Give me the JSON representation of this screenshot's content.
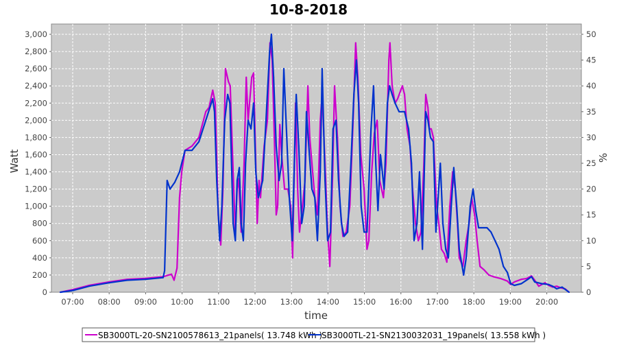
{
  "chart_data": {
    "type": "line",
    "title": "10-8-2018",
    "xlabel": "time",
    "ylabel": "Watt",
    "ylabel_right": "%",
    "ylim": [
      0,
      3000
    ],
    "ylim_right": [
      0,
      50
    ],
    "xlim_hours": [
      6.4,
      21.0
    ],
    "grid": true,
    "legend_position": "bottom",
    "x_ticks": [
      "07:00",
      "08:00",
      "09:00",
      "10:00",
      "11:00",
      "12:00",
      "13:00",
      "14:00",
      "15:00",
      "16:00",
      "17:00",
      "18:00",
      "19:00",
      "20:00"
    ],
    "y_ticks": [
      "0",
      "200",
      "400",
      "600",
      "800",
      "1,000",
      "1,200",
      "1,400",
      "1,600",
      "1,800",
      "2,000",
      "2,200",
      "2,400",
      "2,600",
      "2,800",
      "3,000"
    ],
    "y_ticks_right": [
      "0",
      "5",
      "10",
      "15",
      "20",
      "25",
      "30",
      "35",
      "40",
      "45",
      "50"
    ],
    "series": [
      {
        "name": "SB3000TL-20-SN2100578613_21panels( 13.748 kWh )",
        "color": "#cc00cc",
        "points": [
          [
            6.66,
            0
          ],
          [
            7.0,
            30
          ],
          [
            7.45,
            80
          ],
          [
            8.0,
            120
          ],
          [
            8.49,
            150
          ],
          [
            8.99,
            160
          ],
          [
            9.48,
            180
          ],
          [
            9.63,
            200
          ],
          [
            9.71,
            210
          ],
          [
            9.78,
            140
          ],
          [
            9.86,
            280
          ],
          [
            9.93,
            1100
          ],
          [
            9.99,
            1400
          ],
          [
            10.08,
            1650
          ],
          [
            10.27,
            1700
          ],
          [
            10.46,
            1800
          ],
          [
            10.65,
            2100
          ],
          [
            10.74,
            2150
          ],
          [
            10.84,
            2350
          ],
          [
            10.91,
            2200
          ],
          [
            10.99,
            900
          ],
          [
            11.06,
            550
          ],
          [
            11.12,
            1200
          ],
          [
            11.19,
            2600
          ],
          [
            11.27,
            2450
          ],
          [
            11.32,
            2400
          ],
          [
            11.4,
            1400
          ],
          [
            11.46,
            700
          ],
          [
            11.51,
            1200
          ],
          [
            11.55,
            1320
          ],
          [
            11.62,
            700
          ],
          [
            11.7,
            1500
          ],
          [
            11.76,
            2500
          ],
          [
            11.81,
            2000
          ],
          [
            11.91,
            2500
          ],
          [
            11.96,
            2550
          ],
          [
            12.02,
            1500
          ],
          [
            12.06,
            800
          ],
          [
            12.11,
            1300
          ],
          [
            12.15,
            1100
          ],
          [
            12.25,
            1700
          ],
          [
            12.34,
            2000
          ],
          [
            12.41,
            2900
          ],
          [
            12.47,
            2700
          ],
          [
            12.53,
            1800
          ],
          [
            12.58,
            900
          ],
          [
            12.62,
            1000
          ],
          [
            12.68,
            1950
          ],
          [
            12.73,
            1600
          ],
          [
            12.81,
            1200
          ],
          [
            12.9,
            1200
          ],
          [
            12.98,
            1000
          ],
          [
            13.03,
            400
          ],
          [
            13.11,
            2200
          ],
          [
            13.17,
            1200
          ],
          [
            13.22,
            700
          ],
          [
            13.3,
            1000
          ],
          [
            13.37,
            1300
          ],
          [
            13.45,
            2400
          ],
          [
            13.5,
            1800
          ],
          [
            13.56,
            1500
          ],
          [
            13.64,
            1100
          ],
          [
            13.71,
            900
          ],
          [
            13.79,
            2000
          ],
          [
            13.84,
            2300
          ],
          [
            13.92,
            1500
          ],
          [
            13.99,
            700
          ],
          [
            14.05,
            300
          ],
          [
            14.13,
            1400
          ],
          [
            14.18,
            2400
          ],
          [
            14.26,
            1800
          ],
          [
            14.33,
            1000
          ],
          [
            14.41,
            650
          ],
          [
            14.5,
            700
          ],
          [
            14.6,
            1000
          ],
          [
            14.69,
            2000
          ],
          [
            14.76,
            2900
          ],
          [
            14.82,
            2500
          ],
          [
            14.9,
            1600
          ],
          [
            14.99,
            1200
          ],
          [
            15.07,
            500
          ],
          [
            15.12,
            600
          ],
          [
            15.2,
            1400
          ],
          [
            15.27,
            1850
          ],
          [
            15.35,
            2000
          ],
          [
            15.42,
            1300
          ],
          [
            15.52,
            1100
          ],
          [
            15.59,
            1500
          ],
          [
            15.67,
            2700
          ],
          [
            15.7,
            2900
          ],
          [
            15.76,
            2400
          ],
          [
            15.84,
            2200
          ],
          [
            15.91,
            2250
          ],
          [
            16.04,
            2400
          ],
          [
            16.1,
            2300
          ],
          [
            16.17,
            1900
          ],
          [
            16.25,
            1700
          ],
          [
            16.32,
            1200
          ],
          [
            16.4,
            800
          ],
          [
            16.48,
            600
          ],
          [
            16.55,
            700
          ],
          [
            16.63,
            1500
          ],
          [
            16.68,
            2300
          ],
          [
            16.74,
            2150
          ],
          [
            16.78,
            1900
          ],
          [
            16.83,
            1900
          ],
          [
            16.89,
            1800
          ],
          [
            16.98,
            1000
          ],
          [
            17.04,
            800
          ],
          [
            17.11,
            500
          ],
          [
            17.19,
            450
          ],
          [
            17.26,
            350
          ],
          [
            17.34,
            1000
          ],
          [
            17.42,
            1400
          ],
          [
            17.49,
            1200
          ],
          [
            17.55,
            800
          ],
          [
            17.6,
            400
          ],
          [
            17.7,
            300
          ],
          [
            17.79,
            600
          ],
          [
            17.87,
            800
          ],
          [
            17.94,
            1100
          ],
          [
            18.02,
            900
          ],
          [
            18.09,
            600
          ],
          [
            18.17,
            300
          ],
          [
            18.28,
            260
          ],
          [
            18.41,
            200
          ],
          [
            18.54,
            180
          ],
          [
            18.73,
            160
          ],
          [
            18.92,
            130
          ],
          [
            19.01,
            90
          ],
          [
            19.11,
            120
          ],
          [
            19.3,
            150
          ],
          [
            19.45,
            160
          ],
          [
            19.58,
            190
          ],
          [
            19.67,
            140
          ],
          [
            19.78,
            70
          ],
          [
            19.95,
            110
          ],
          [
            20.05,
            80
          ],
          [
            20.16,
            60
          ],
          [
            20.27,
            70
          ],
          [
            20.39,
            50
          ],
          [
            20.5,
            40
          ],
          [
            20.61,
            0
          ]
        ]
      },
      {
        "name": "SB3000TL-21-SN2130032031_19panels( 13.558 kWh )",
        "color": "#0033cc",
        "points": [
          [
            6.66,
            0
          ],
          [
            7.0,
            20
          ],
          [
            7.45,
            70
          ],
          [
            8.0,
            110
          ],
          [
            8.49,
            140
          ],
          [
            8.99,
            150
          ],
          [
            9.48,
            170
          ],
          [
            9.52,
            250
          ],
          [
            9.59,
            1300
          ],
          [
            9.67,
            1200
          ],
          [
            9.8,
            1280
          ],
          [
            9.93,
            1400
          ],
          [
            10.08,
            1650
          ],
          [
            10.27,
            1650
          ],
          [
            10.46,
            1750
          ],
          [
            10.65,
            2000
          ],
          [
            10.84,
            2250
          ],
          [
            10.89,
            2100
          ],
          [
            10.95,
            1300
          ],
          [
            11.03,
            600
          ],
          [
            11.09,
            1000
          ],
          [
            11.17,
            2000
          ],
          [
            11.25,
            2300
          ],
          [
            11.31,
            2200
          ],
          [
            11.4,
            800
          ],
          [
            11.46,
            600
          ],
          [
            11.51,
            1300
          ],
          [
            11.57,
            1450
          ],
          [
            11.62,
            800
          ],
          [
            11.68,
            600
          ],
          [
            11.74,
            1500
          ],
          [
            11.81,
            2000
          ],
          [
            11.89,
            1900
          ],
          [
            11.96,
            2200
          ],
          [
            12.02,
            1400
          ],
          [
            12.09,
            1100
          ],
          [
            12.15,
            1200
          ],
          [
            12.21,
            1300
          ],
          [
            12.3,
            2000
          ],
          [
            12.4,
            2800
          ],
          [
            12.45,
            3000
          ],
          [
            12.51,
            2500
          ],
          [
            12.58,
            1700
          ],
          [
            12.66,
            1300
          ],
          [
            12.73,
            1500
          ],
          [
            12.79,
            2600
          ],
          [
            12.87,
            1800
          ],
          [
            12.94,
            1100
          ],
          [
            13.02,
            600
          ],
          [
            13.13,
            2300
          ],
          [
            13.2,
            1700
          ],
          [
            13.28,
            800
          ],
          [
            13.35,
            1000
          ],
          [
            13.41,
            2100
          ],
          [
            13.49,
            1600
          ],
          [
            13.56,
            1200
          ],
          [
            13.64,
            1100
          ],
          [
            13.71,
            600
          ],
          [
            13.79,
            1400
          ],
          [
            13.84,
            2600
          ],
          [
            13.92,
            1300
          ],
          [
            13.99,
            600
          ],
          [
            14.07,
            700
          ],
          [
            14.14,
            1900
          ],
          [
            14.22,
            2000
          ],
          [
            14.29,
            1300
          ],
          [
            14.37,
            800
          ],
          [
            14.44,
            650
          ],
          [
            14.54,
            700
          ],
          [
            14.63,
            1500
          ],
          [
            14.71,
            2300
          ],
          [
            14.78,
            2700
          ],
          [
            14.84,
            2200
          ],
          [
            14.91,
            1000
          ],
          [
            14.99,
            700
          ],
          [
            15.07,
            700
          ],
          [
            15.18,
            1900
          ],
          [
            15.25,
            2400
          ],
          [
            15.31,
            1500
          ],
          [
            15.37,
            950
          ],
          [
            15.44,
            1600
          ],
          [
            15.54,
            1200
          ],
          [
            15.63,
            2200
          ],
          [
            15.69,
            2400
          ],
          [
            15.76,
            2300
          ],
          [
            15.84,
            2200
          ],
          [
            15.95,
            2100
          ],
          [
            16.1,
            2100
          ],
          [
            16.21,
            1900
          ],
          [
            16.29,
            1500
          ],
          [
            16.36,
            600
          ],
          [
            16.44,
            800
          ],
          [
            16.51,
            1400
          ],
          [
            16.59,
            500
          ],
          [
            16.68,
            2100
          ],
          [
            16.74,
            2000
          ],
          [
            16.81,
            1800
          ],
          [
            16.89,
            1750
          ],
          [
            16.96,
            700
          ],
          [
            17.02,
            1100
          ],
          [
            17.08,
            1500
          ],
          [
            17.15,
            800
          ],
          [
            17.23,
            500
          ],
          [
            17.3,
            400
          ],
          [
            17.38,
            1000
          ],
          [
            17.45,
            1450
          ],
          [
            17.53,
            1000
          ],
          [
            17.6,
            500
          ],
          [
            17.72,
            200
          ],
          [
            17.79,
            400
          ],
          [
            17.9,
            1000
          ],
          [
            17.98,
            1200
          ],
          [
            18.05,
            950
          ],
          [
            18.13,
            750
          ],
          [
            18.2,
            750
          ],
          [
            18.36,
            750
          ],
          [
            18.47,
            700
          ],
          [
            18.58,
            600
          ],
          [
            18.69,
            500
          ],
          [
            18.81,
            300
          ],
          [
            18.92,
            230
          ],
          [
            19.01,
            100
          ],
          [
            19.11,
            80
          ],
          [
            19.3,
            100
          ],
          [
            19.48,
            150
          ],
          [
            19.58,
            180
          ],
          [
            19.67,
            120
          ],
          [
            19.86,
            100
          ],
          [
            20.05,
            90
          ],
          [
            20.16,
            70
          ],
          [
            20.27,
            40
          ],
          [
            20.42,
            60
          ],
          [
            20.61,
            0
          ]
        ]
      }
    ]
  }
}
